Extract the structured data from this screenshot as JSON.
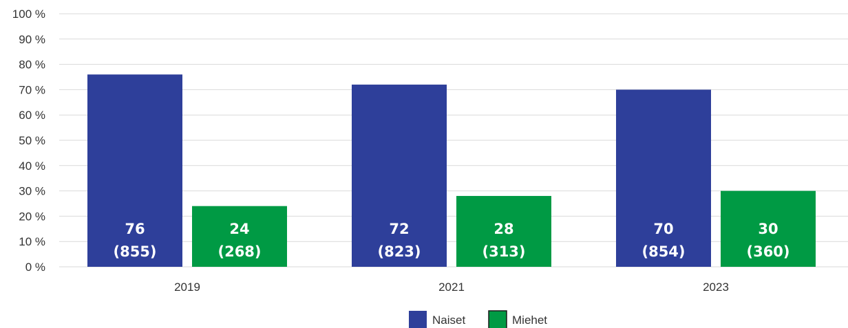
{
  "chart_data": {
    "type": "bar",
    "title": "",
    "xlabel": "",
    "ylabel": "",
    "categories": [
      "2019",
      "2021",
      "2023"
    ],
    "ylim": [
      0,
      100
    ],
    "yticks": [
      0,
      10,
      20,
      30,
      40,
      50,
      60,
      70,
      80,
      90,
      100
    ],
    "ytick_suffix": " %",
    "grid": true,
    "legend_position": "bottom-center",
    "series": [
      {
        "name": "Naiset",
        "color": "#2e3f9a",
        "values": [
          76,
          72,
          70
        ],
        "counts": [
          "(855)",
          "(823)",
          "(854)"
        ]
      },
      {
        "name": "Miehet",
        "color": "#009a44",
        "values": [
          24,
          28,
          30
        ],
        "counts": [
          "(268)",
          "(313)",
          "(360)"
        ]
      }
    ]
  }
}
